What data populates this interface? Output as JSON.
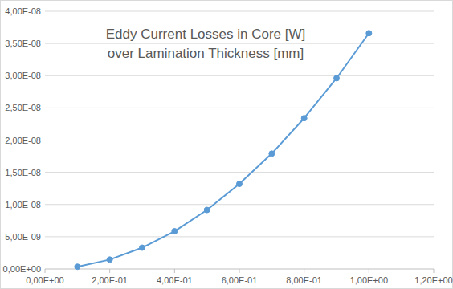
{
  "chart_data": {
    "type": "line",
    "title": "Eddy Current Losses in Core [W]",
    "subtitle": "over Lamination Thickness [mm]",
    "x": [
      0.1,
      0.2,
      0.3,
      0.4,
      0.5,
      0.6,
      0.7,
      0.8,
      0.9,
      1.0
    ],
    "values": [
      3.5e-10,
      1.45e-09,
      3.3e-09,
      5.85e-09,
      9.15e-09,
      1.32e-08,
      1.79e-08,
      2.34e-08,
      2.96e-08,
      3.66e-08
    ],
    "color": "#5b9bd5",
    "marker": "circle",
    "xlim": [
      0,
      1.2
    ],
    "xticks": [
      {
        "value": 0,
        "label": "0,00E+00"
      },
      {
        "value": 0.2,
        "label": "2,00E-01"
      },
      {
        "value": 0.4,
        "label": "4,00E-01"
      },
      {
        "value": 0.6,
        "label": "6,00E-01"
      },
      {
        "value": 0.8,
        "label": "8,00E-01"
      },
      {
        "value": 1.0,
        "label": "1,00E+00"
      },
      {
        "value": 1.2,
        "label": "1,20E+00"
      }
    ],
    "ylim": [
      0,
      4e-08
    ],
    "yticks": [
      {
        "value": 0,
        "label": "0,00E+00"
      },
      {
        "value": 5e-09,
        "label": "5,00E-09"
      },
      {
        "value": 1e-08,
        "label": "1,00E-08"
      },
      {
        "value": 1.5e-08,
        "label": "1,50E-08"
      },
      {
        "value": 2e-08,
        "label": "2,00E-08"
      },
      {
        "value": 2.5e-08,
        "label": "2,50E-08"
      },
      {
        "value": 3e-08,
        "label": "3,00E-08"
      },
      {
        "value": 3.5e-08,
        "label": "3,50E-08"
      },
      {
        "value": 4e-08,
        "label": "4,00E-08"
      }
    ],
    "grid": true
  }
}
